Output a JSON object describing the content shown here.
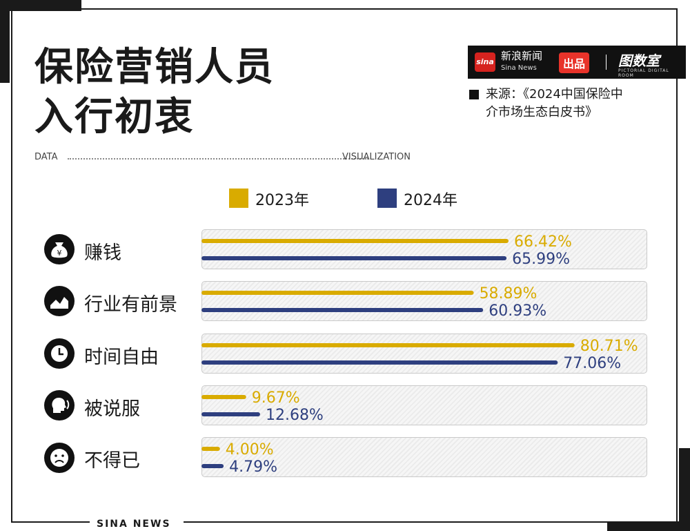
{
  "header": {
    "title_line1": "保险营销人员",
    "title_line2": "入行初衷",
    "data_label": "DATA",
    "visualization_label": "VISUALIZATION",
    "source_line1": "来源：《2024中国保险中",
    "source_line2": "介市场生态白皮书》"
  },
  "brand": {
    "sina_logo_text": "sina",
    "sina_name": "新浪新闻",
    "sina_name_en": "Sina News",
    "produced": "出品",
    "tushishi": "图数室",
    "tushishi_en": "PICTORIAL DIGITAL ROOM"
  },
  "footer": {
    "text": "SINA NEWS"
  },
  "colors": {
    "y2023": "#d9ab00",
    "y2024": "#2e3f7f",
    "ink": "#111111"
  },
  "icons": [
    "money-bag-icon",
    "trend-chart-icon",
    "clock-icon",
    "speech-head-icon",
    "sad-face-icon"
  ],
  "chart_data": {
    "type": "bar",
    "orientation": "horizontal",
    "categories": [
      "赚钱",
      "行业有前景",
      "时间自由",
      "被说服",
      "不得已"
    ],
    "series": [
      {
        "name": "2023年",
        "values": [
          66.42,
          58.89,
          80.71,
          9.67,
          4.0
        ],
        "labels": [
          "66.42%",
          "58.89%",
          "80.71%",
          "9.67%",
          "4.00%"
        ]
      },
      {
        "name": "2024年",
        "values": [
          65.99,
          60.93,
          77.06,
          12.68,
          4.79
        ],
        "labels": [
          "65.99%",
          "60.93%",
          "77.06%",
          "12.68%",
          "4.79%"
        ]
      }
    ],
    "unit": "%",
    "legend_position": "top-center"
  }
}
